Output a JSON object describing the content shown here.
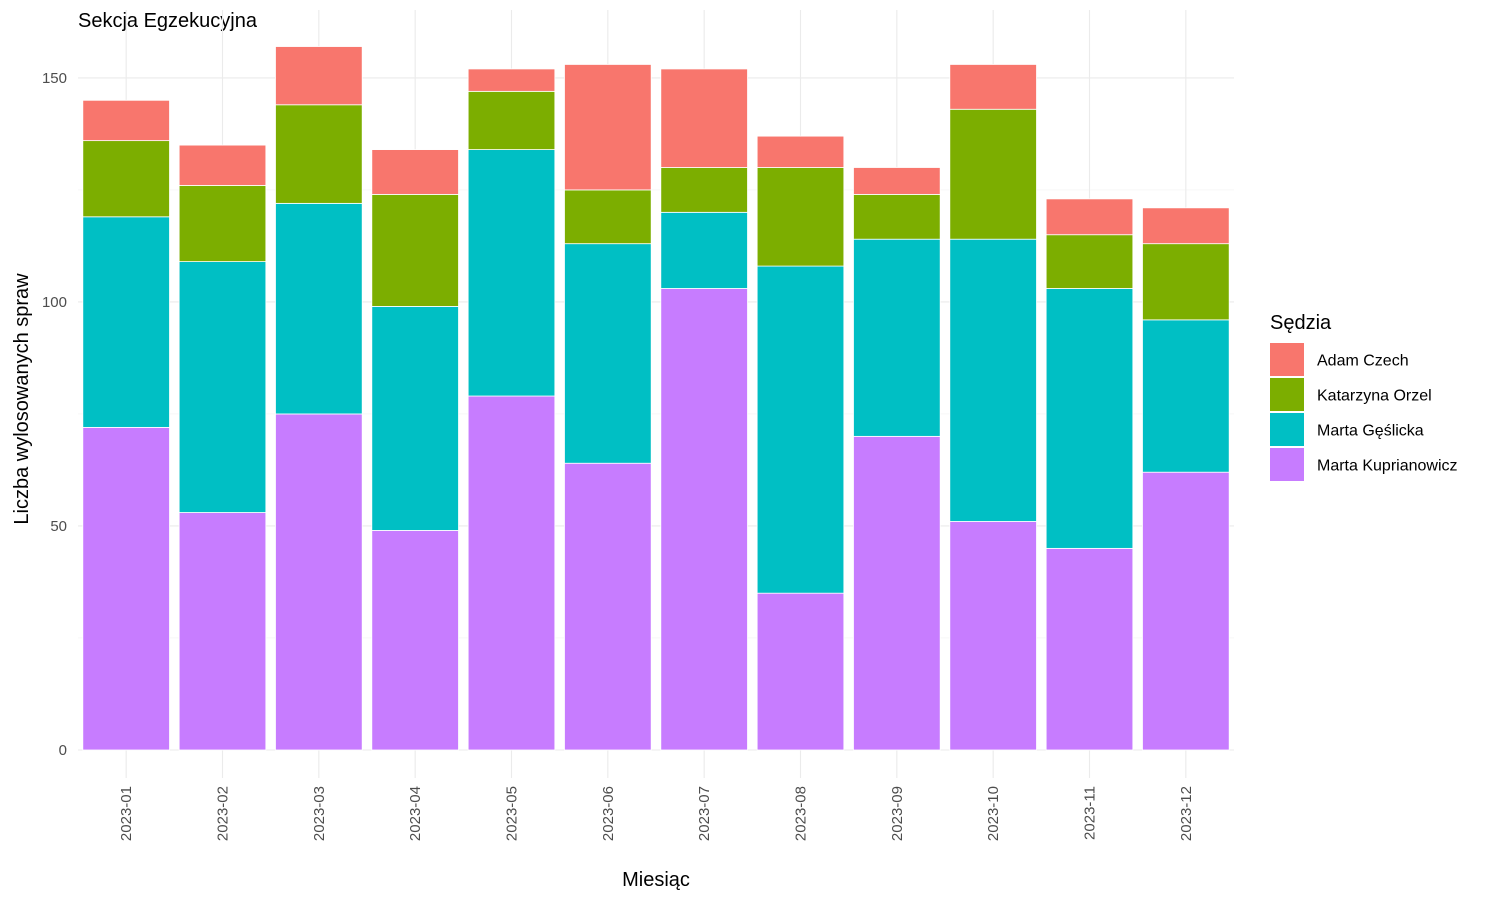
{
  "chart_data": {
    "type": "bar",
    "stacked": true,
    "title": "Sekcja Egzekucyjna",
    "xlabel": "Miesiąc",
    "ylabel": "Liczba wylosowanych spraw",
    "ylim": [
      0,
      160
    ],
    "yticks": [
      0,
      50,
      100,
      150
    ],
    "grid": true,
    "legend": {
      "title": "Sędzia",
      "position": "right"
    },
    "categories": [
      "2023-01",
      "2023-02",
      "2023-03",
      "2023-04",
      "2023-05",
      "2023-06",
      "2023-07",
      "2023-08",
      "2023-09",
      "2023-10",
      "2023-11",
      "2023-12"
    ],
    "series": [
      {
        "name": "Adam Czech",
        "color": "#F8766D",
        "values": [
          9,
          9,
          13,
          10,
          5,
          28,
          22,
          7,
          6,
          10,
          8,
          8
        ]
      },
      {
        "name": "Katarzyna Orzel",
        "color": "#7CAE00",
        "values": [
          17,
          17,
          22,
          25,
          13,
          12,
          10,
          22,
          10,
          29,
          12,
          17
        ]
      },
      {
        "name": "Marta Gęślicka",
        "color": "#00BFC4",
        "values": [
          47,
          56,
          47,
          50,
          55,
          49,
          17,
          73,
          44,
          63,
          58,
          34
        ]
      },
      {
        "name": "Marta Kuprianowicz",
        "color": "#C77CFF",
        "values": [
          72,
          53,
          75,
          49,
          79,
          64,
          103,
          35,
          70,
          51,
          45,
          62
        ]
      }
    ]
  }
}
